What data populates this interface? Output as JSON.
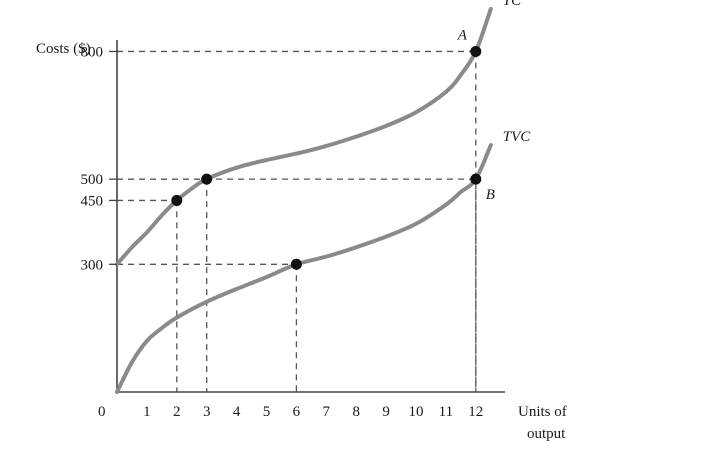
{
  "chart_data": {
    "type": "line",
    "ylabel": "Costs ($)",
    "xlabel_lines": [
      "Units of",
      "output"
    ],
    "origin_label": "0",
    "x_ticks": [
      1,
      2,
      3,
      4,
      5,
      6,
      7,
      8,
      9,
      10,
      11,
      12
    ],
    "y_ticks": [
      300,
      450,
      500,
      800
    ],
    "xlim": [
      0,
      13.4
    ],
    "ylim": [
      0,
      1100
    ],
    "grid": false,
    "series": [
      {
        "name": "TC",
        "color": "#8a8a8a",
        "x": [
          0,
          0.5,
          1,
          1.5,
          2,
          2.5,
          3,
          4,
          5,
          6,
          7,
          8,
          9,
          10,
          11,
          11.5,
          12,
          12.5
        ],
        "y": [
          300,
          340,
          375,
          415,
          450,
          478,
          500,
          527,
          545,
          560,
          578,
          600,
          625,
          657,
          705,
          745,
          800,
          900
        ]
      },
      {
        "name": "TVC",
        "color": "#8a8a8a",
        "x": [
          0,
          0.5,
          1,
          1.5,
          2,
          3,
          4,
          5,
          6,
          7,
          8,
          9,
          10,
          11,
          11.5,
          12,
          12.5
        ],
        "y": [
          0,
          70,
          120,
          150,
          175,
          212,
          242,
          270,
          300,
          318,
          340,
          365,
          395,
          440,
          470,
          500,
          580
        ]
      }
    ],
    "points": [
      {
        "x": 2,
        "y": 450,
        "label": ""
      },
      {
        "x": 3,
        "y": 500,
        "label": ""
      },
      {
        "x": 6,
        "y": 300,
        "label": ""
      },
      {
        "x": 12,
        "y": 800,
        "label": "A"
      },
      {
        "x": 12,
        "y": 500,
        "label": "B"
      }
    ],
    "guides": [
      {
        "x": 2,
        "y": 450
      },
      {
        "x": 3,
        "y": 500
      },
      {
        "x": 6,
        "y": 300
      },
      {
        "x": 12,
        "y": 800
      },
      {
        "x": 12,
        "y": 500
      }
    ]
  }
}
